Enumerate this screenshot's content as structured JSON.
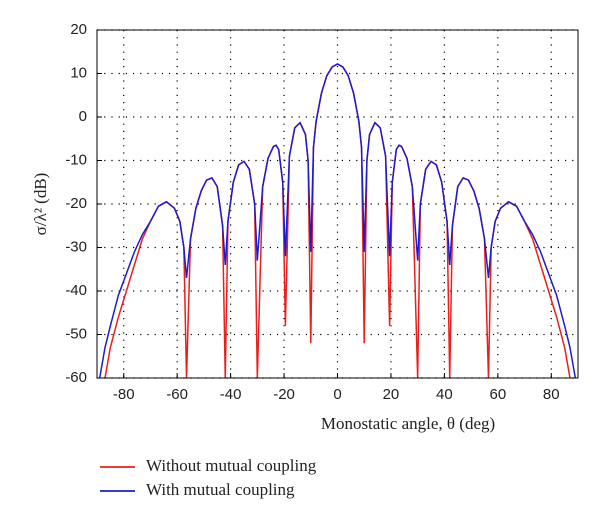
{
  "chart_data": {
    "type": "line",
    "xlabel": "Monostatic angle, θ (deg)",
    "ylabel": "σ/λ² (dB)",
    "x": [
      -89,
      -87,
      -85,
      -82,
      -79,
      -76,
      -73,
      -70,
      -67,
      -64,
      -61,
      -59,
      -57.5,
      -56.5,
      -55,
      -53,
      -51,
      -49,
      -47,
      -45,
      -43,
      -42,
      -41,
      -39,
      -37,
      -35,
      -33,
      -31,
      -30,
      -28,
      -26,
      -24,
      -23,
      -22,
      -20.5,
      -19.5,
      -18,
      -16,
      -14,
      -12,
      -11,
      -10,
      -9,
      -8,
      -6,
      -4,
      -2,
      0,
      2,
      4,
      6,
      8,
      9,
      10,
      11,
      12,
      14,
      16,
      18,
      19.5,
      20.5,
      22,
      23,
      24,
      26,
      28,
      30,
      31,
      33,
      35,
      37,
      39,
      41,
      42,
      43,
      45,
      47,
      49,
      51,
      53,
      55,
      56.5,
      57.5,
      59,
      61,
      64,
      67,
      70,
      73,
      76,
      79,
      82,
      85,
      87,
      89
    ],
    "series": [
      {
        "name": "Without mutual coupling",
        "color": "#e8201c",
        "values": [
          null,
          -60,
          -53,
          -46,
          -40,
          -34,
          -28,
          -24,
          -20.5,
          -19.5,
          -21,
          -24,
          -30,
          -60,
          -28,
          -21,
          -17,
          -14.5,
          -14,
          -16,
          -25,
          -60,
          -24,
          -15,
          -11,
          -10.2,
          -12,
          -20,
          -60,
          -16,
          -9.5,
          -6.8,
          -6.5,
          -7.5,
          -15,
          -48,
          -9,
          -2.5,
          -1.3,
          -4,
          -10,
          -52,
          -7,
          -1,
          5.5,
          9.5,
          11.5,
          12.2,
          11.5,
          9.5,
          5.5,
          -1,
          -7,
          -52,
          -10,
          -4,
          -1.3,
          -2.5,
          -9,
          -48,
          -15,
          -7.5,
          -6.5,
          -6.8,
          -9.5,
          -16,
          -60,
          -20,
          -12,
          -10.2,
          -11,
          -15,
          -24,
          -60,
          -25,
          -16,
          -14,
          -14.5,
          -17,
          -21,
          -28,
          -60,
          -30,
          -24,
          -21,
          -19.5,
          -20.5,
          -24,
          -28,
          -34,
          -40,
          -46,
          -53,
          -60,
          null
        ]
      },
      {
        "name": "With mutual coupling",
        "color": "#1c1ccc",
        "values": [
          -60,
          -53,
          -48,
          -41,
          -36,
          -31,
          -27,
          -24,
          -20.5,
          -19.5,
          -21,
          -24,
          -30,
          -37,
          -28,
          -21,
          -17,
          -14.5,
          -14,
          -16,
          -25,
          -34,
          -24,
          -15,
          -11,
          -10.2,
          -12,
          -20,
          -33,
          -16,
          -9.5,
          -6.8,
          -6.5,
          -7.5,
          -15,
          -32,
          -9,
          -2.5,
          -1.3,
          -4,
          -10,
          -31,
          -7,
          -1,
          5.5,
          9.5,
          11.5,
          12.2,
          11.5,
          9.5,
          5.5,
          -1,
          -7,
          -31,
          -10,
          -4,
          -1.3,
          -2.5,
          -9,
          -32,
          -15,
          -7.5,
          -6.5,
          -6.8,
          -9.5,
          -16,
          -33,
          -20,
          -12,
          -10.2,
          -11,
          -15,
          -24,
          -34,
          -25,
          -16,
          -14,
          -14.5,
          -17,
          -21,
          -28,
          -37,
          -30,
          -24,
          -21,
          -19.5,
          -20.5,
          -24,
          -27,
          -31,
          -36,
          -41,
          -48,
          -53,
          -60
        ]
      }
    ],
    "xlim": [
      -90,
      90
    ],
    "xticks": [
      -80,
      -60,
      -40,
      -20,
      0,
      20,
      40,
      60,
      80
    ],
    "ylim": [
      -60,
      20
    ],
    "yticks": [
      -60,
      -50,
      -40,
      -30,
      -20,
      -10,
      0,
      10,
      20
    ],
    "grid": true,
    "legend": "bottom"
  }
}
